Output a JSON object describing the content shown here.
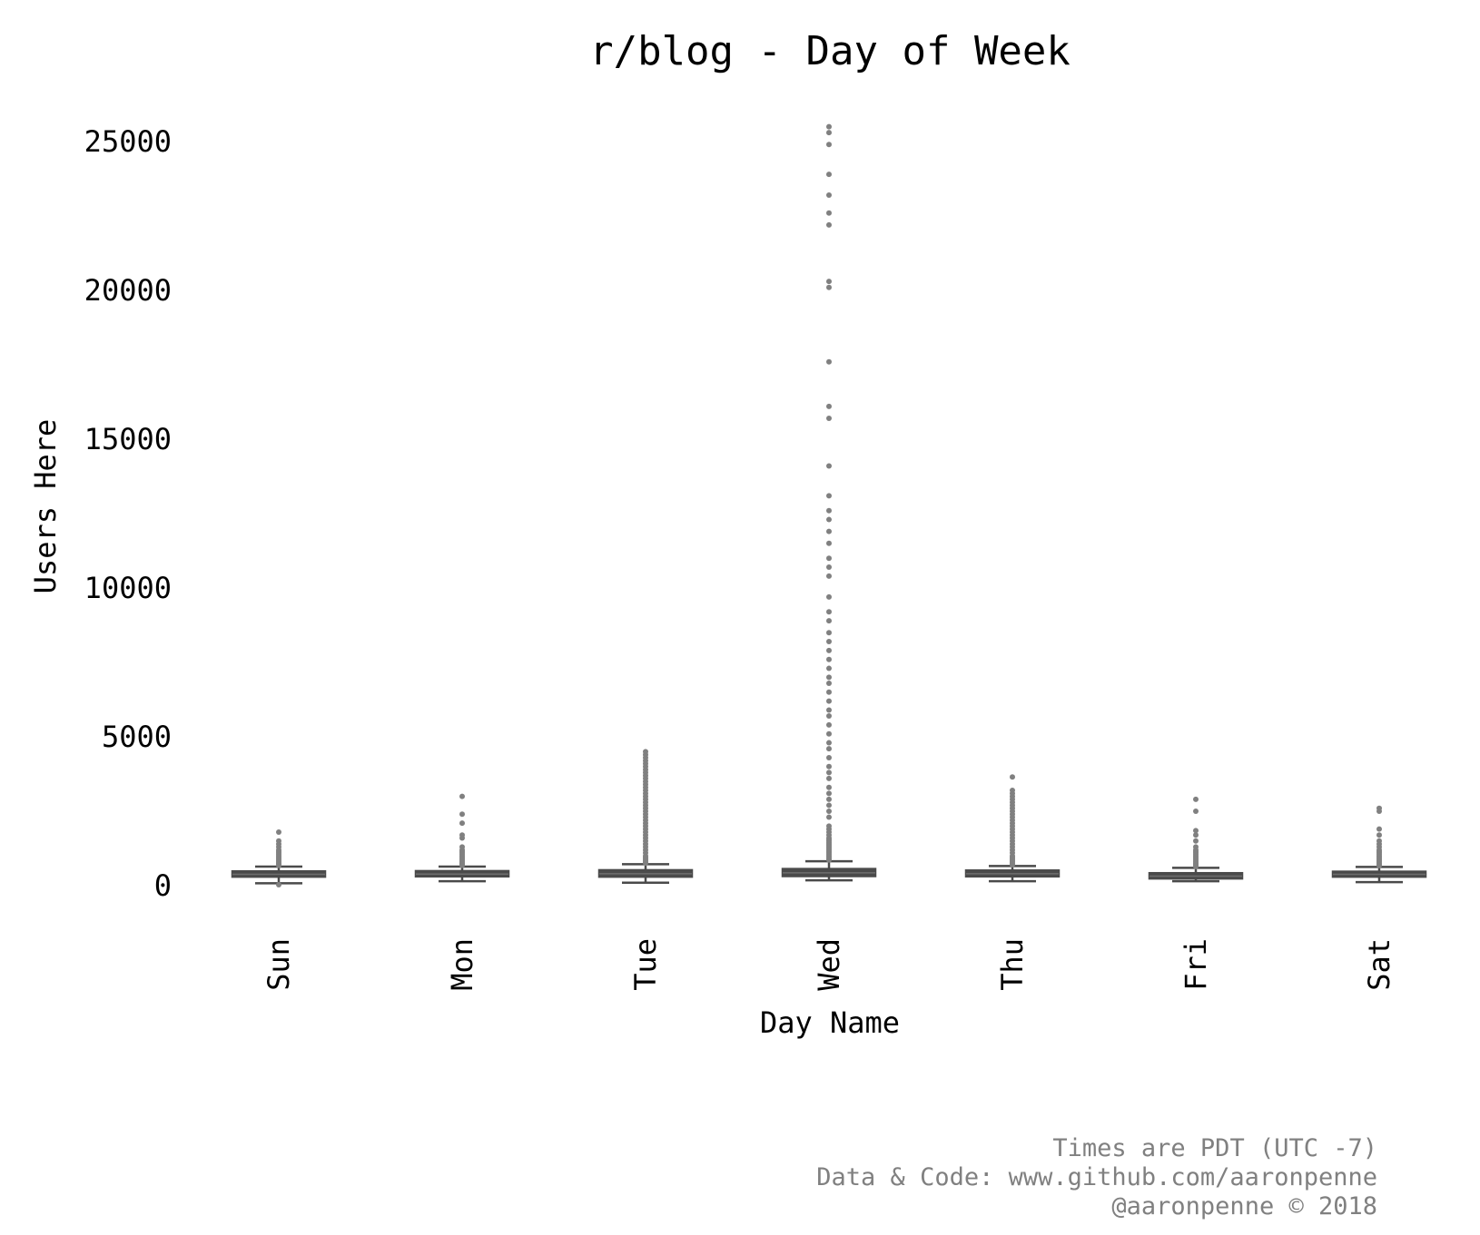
{
  "chart_data": {
    "type": "box",
    "title": "r/blog - Day of Week",
    "xlabel": "Day Name",
    "ylabel": "Users Here",
    "categories": [
      "Sun",
      "Mon",
      "Tue",
      "Wed",
      "Thu",
      "Fri",
      "Sat"
    ],
    "ylim": [
      -600,
      26000
    ],
    "yticks": [
      0,
      5000,
      10000,
      15000,
      20000,
      25000
    ],
    "grid": false,
    "colors": {
      "box": "#4a4a4a",
      "median": "#6e6e6e",
      "flier": "#808080",
      "text": "#000000",
      "footer": "#808080"
    },
    "boxes": [
      {
        "category": "Sun",
        "whisker_low": 80,
        "q1": 300,
        "median": 380,
        "q3": 480,
        "whisker_high": 640,
        "outliers": [
          30,
          680,
          720,
          760,
          800,
          850,
          900,
          950,
          1000,
          1050,
          1100,
          1150,
          1200,
          1300,
          1400,
          1500,
          1800
        ]
      },
      {
        "category": "Mon",
        "whisker_low": 150,
        "q1": 310,
        "median": 390,
        "q3": 490,
        "whisker_high": 640,
        "outliers": [
          680,
          720,
          760,
          800,
          850,
          900,
          950,
          1000,
          1050,
          1100,
          1150,
          1200,
          1300,
          1600,
          1700,
          2100,
          2400,
          3000
        ]
      },
      {
        "category": "Tue",
        "whisker_low": 100,
        "q1": 300,
        "median": 400,
        "q3": 520,
        "whisker_high": 720,
        "outliers": [
          760,
          800,
          850,
          900,
          950,
          1000,
          1100,
          1200,
          1300,
          1400,
          1500,
          1600,
          1700,
          1800,
          1900,
          2000,
          2100,
          2200,
          2300,
          2400,
          2500,
          2600,
          2700,
          2800,
          2900,
          3000,
          3100,
          3200,
          3300,
          3400,
          3500,
          3600,
          3700,
          3800,
          3900,
          4000,
          4100,
          4200,
          4300,
          4400,
          4500
        ]
      },
      {
        "category": "Wed",
        "whisker_low": 180,
        "q1": 320,
        "median": 430,
        "q3": 560,
        "whisker_high": 820,
        "outliers": [
          860,
          900,
          950,
          1000,
          1050,
          1100,
          1150,
          1200,
          1250,
          1300,
          1350,
          1400,
          1450,
          1500,
          1550,
          1600,
          1700,
          1800,
          1900,
          2000,
          2300,
          2500,
          2700,
          2900,
          3100,
          3300,
          3600,
          3800,
          4000,
          4300,
          4600,
          4800,
          5100,
          5400,
          5700,
          5900,
          6200,
          6500,
          6800,
          7000,
          7300,
          7600,
          7900,
          8200,
          8500,
          8900,
          9200,
          9700,
          10400,
          10700,
          11000,
          11500,
          11900,
          12300,
          12600,
          13100,
          14100,
          15700,
          16100,
          17600,
          20100,
          20300,
          22200,
          22600,
          23200,
          23900,
          24900,
          25300,
          25500
        ]
      },
      {
        "category": "Thu",
        "whisker_low": 150,
        "q1": 310,
        "median": 400,
        "q3": 510,
        "whisker_high": 660,
        "outliers": [
          700,
          750,
          800,
          850,
          900,
          950,
          1000,
          1100,
          1200,
          1300,
          1400,
          1500,
          1600,
          1700,
          1800,
          1900,
          2000,
          2100,
          2200,
          2300,
          2400,
          2500,
          2600,
          2700,
          2800,
          2900,
          3000,
          3100,
          3200,
          3650
        ]
      },
      {
        "category": "Fri",
        "whisker_low": 150,
        "q1": 240,
        "median": 320,
        "q3": 420,
        "whisker_high": 600,
        "outliers": [
          640,
          680,
          720,
          760,
          800,
          850,
          900,
          950,
          1000,
          1050,
          1100,
          1150,
          1200,
          1300,
          1500,
          1700,
          1850,
          2500,
          2900
        ]
      },
      {
        "category": "Sat",
        "whisker_low": 120,
        "q1": 300,
        "median": 380,
        "q3": 470,
        "whisker_high": 630,
        "outliers": [
          670,
          710,
          750,
          800,
          850,
          900,
          950,
          1000,
          1050,
          1100,
          1150,
          1200,
          1300,
          1400,
          1500,
          1700,
          1900,
          2500,
          2600
        ]
      }
    ]
  },
  "footer": {
    "line1": "Times are PDT (UTC -7)",
    "line2": "Data & Code: www.github.com/aaronpenne",
    "line3": "@aaronpenne © 2018"
  }
}
